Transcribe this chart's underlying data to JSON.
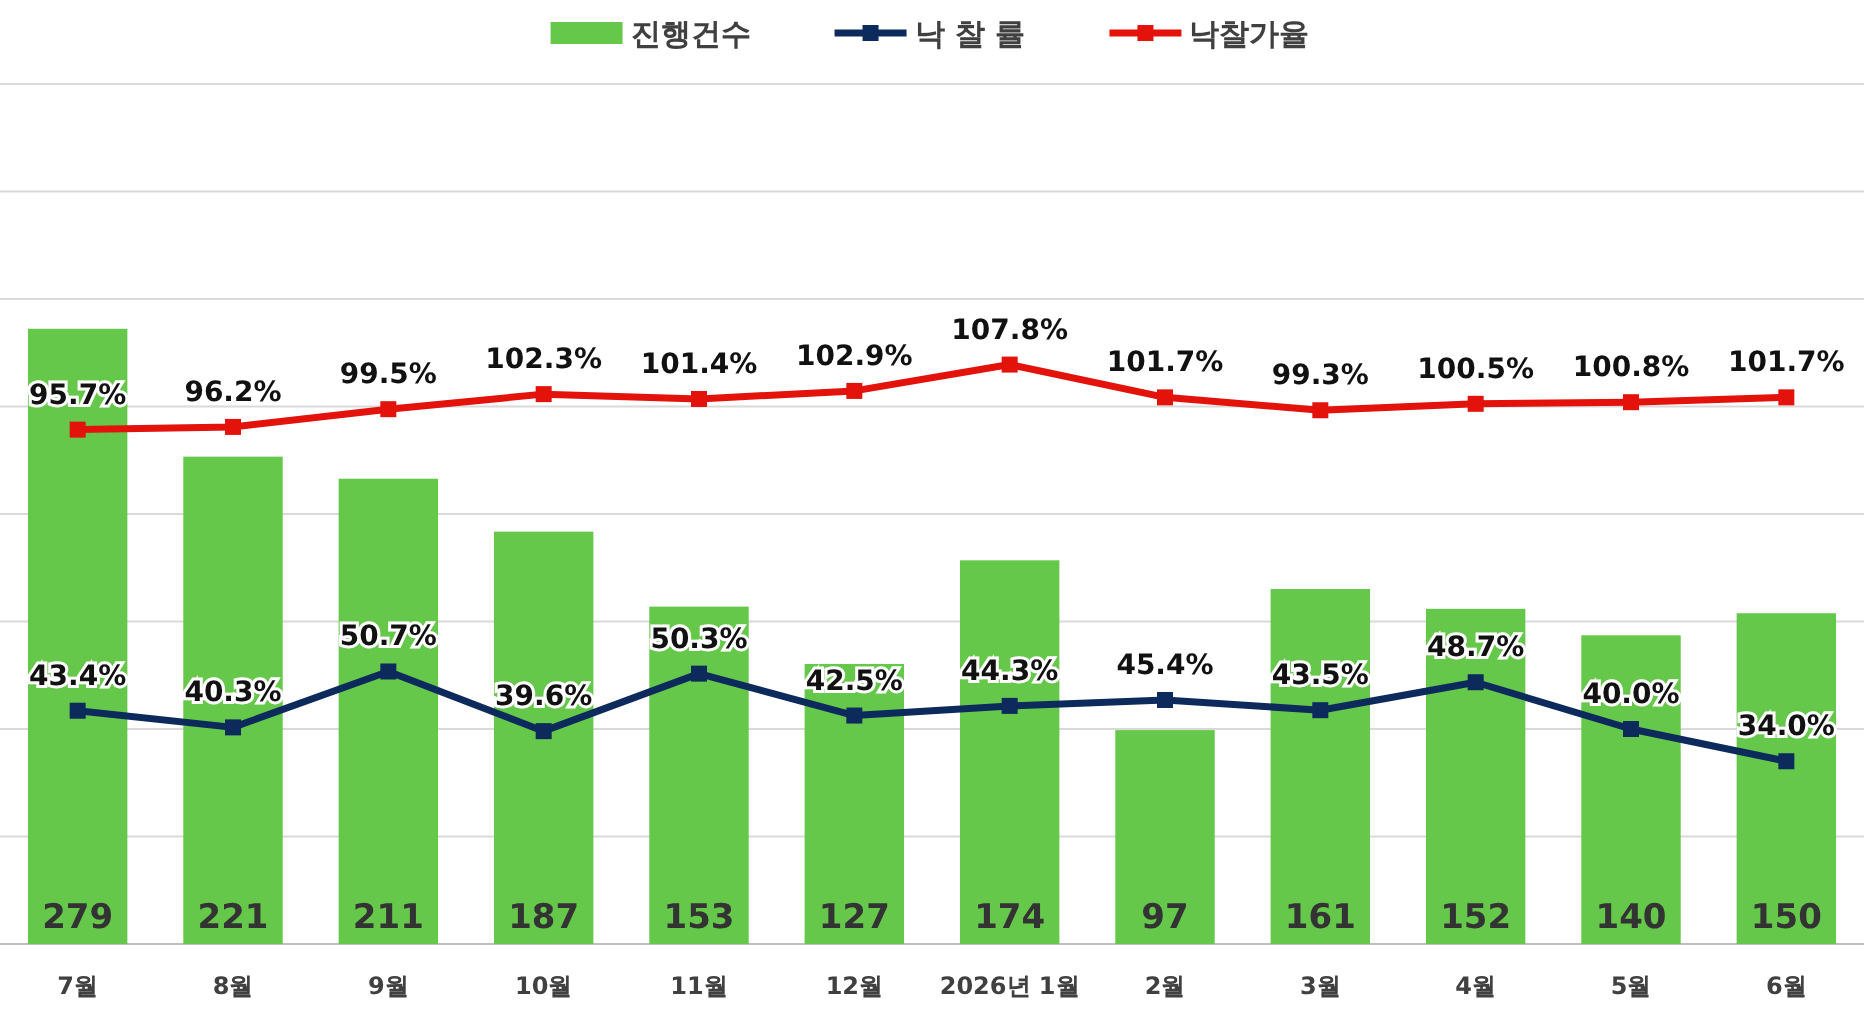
{
  "chart_data": {
    "type": "bar",
    "categories": [
      "7월",
      "8월",
      "9월",
      "10월",
      "11월",
      "12월",
      "2026년 1월",
      "2월",
      "3월",
      "4월",
      "5월",
      "6월"
    ],
    "series": [
      {
        "name": "진행건수",
        "color": "#66c84a",
        "values": [
          279,
          221,
          211,
          187,
          153,
          127,
          174,
          97,
          161,
          152,
          140,
          150
        ],
        "value_labels": [
          "279",
          "221",
          "211",
          "187",
          "153",
          "127",
          "174",
          "97",
          "161",
          "152",
          "140",
          "150"
        ]
      },
      {
        "name": "낙 찰 률",
        "type": "line",
        "axis": "y2",
        "color": "#0d2a5c",
        "values": [
          43.4,
          40.3,
          50.7,
          39.6,
          50.3,
          42.5,
          44.3,
          45.4,
          43.5,
          48.7,
          40.0,
          34.0
        ],
        "value_labels": [
          "43.4%",
          "40.3%",
          "50.7%",
          "39.6%",
          "50.3%",
          "42.5%",
          "44.3%",
          "45.4%",
          "43.5%",
          "48.7%",
          "40.0%",
          "34.0%"
        ]
      },
      {
        "name": "낙찰가율",
        "type": "line",
        "axis": "y2",
        "color": "#e3120b",
        "values": [
          95.7,
          96.2,
          99.5,
          102.3,
          101.4,
          102.9,
          107.8,
          101.7,
          99.3,
          100.5,
          100.8,
          101.7
        ],
        "value_labels": [
          "95.7%",
          "96.2%",
          "99.5%",
          "102.3%",
          "101.4%",
          "102.9%",
          "107.8%",
          "101.7%",
          "99.3%",
          "100.5%",
          "100.8%",
          "101.7%"
        ]
      }
    ],
    "ylim": [
      0,
      390
    ],
    "y2lim": [
      0,
      160
    ],
    "y2ticks": [
      {
        "value": 0,
        "label": null
      },
      {
        "value": 20,
        "label": null
      },
      {
        "value": 40,
        "label": null
      },
      {
        "value": 60,
        "label": null
      },
      {
        "value": 80,
        "label": null
      },
      {
        "value": 100,
        "label": null
      },
      {
        "value": 120,
        "label": null
      },
      {
        "value": 140,
        "label": null
      },
      {
        "value": 160,
        "label": null
      }
    ],
    "tick_labels": "x",
    "grid": "y",
    "legend": "top",
    "marker": "square",
    "line_style": "solid"
  }
}
